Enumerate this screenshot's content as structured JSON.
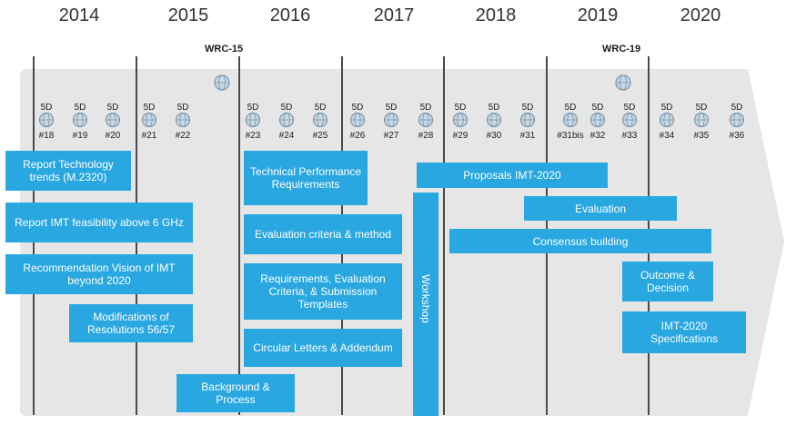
{
  "years": [
    "2014",
    "2015",
    "2016",
    "2017",
    "2018",
    "2019",
    "2020"
  ],
  "wrc": [
    "WRC-15",
    "WRC-19"
  ],
  "meetings": [
    {
      "top": "5D",
      "num": "#18"
    },
    {
      "top": "5D",
      "num": "#19"
    },
    {
      "top": "5D",
      "num": "#20"
    },
    {
      "top": "5D",
      "num": "#21"
    },
    {
      "top": "5D",
      "num": "#22"
    },
    {
      "top": "5D",
      "num": "#23"
    },
    {
      "top": "5D",
      "num": "#24"
    },
    {
      "top": "5D",
      "num": "#25"
    },
    {
      "top": "5D",
      "num": "#26"
    },
    {
      "top": "5D",
      "num": "#27"
    },
    {
      "top": "5D",
      "num": "#28"
    },
    {
      "top": "5D",
      "num": "#29"
    },
    {
      "top": "5D",
      "num": "#30"
    },
    {
      "top": "5D",
      "num": "#31"
    },
    {
      "top": "5D",
      "num": "#31bis"
    },
    {
      "top": "5D",
      "num": "#32"
    },
    {
      "top": "5D",
      "num": "#33"
    },
    {
      "top": "5D",
      "num": "#34"
    },
    {
      "top": "5D",
      "num": "#35"
    },
    {
      "top": "5D",
      "num": "#36"
    }
  ],
  "boxes": {
    "report_tech": "Report Technology trends (M.2320)",
    "report_imt": "Report  IMT feasibility  above 6 GHz",
    "rec_vision": "Recommendation Vision of IMT beyond 2020",
    "mod_res": "Modifications of Resolutions 56/57",
    "background": "Background & Process",
    "tech_perf": "Technical Performance Requirements",
    "eval_criteria": "Evaluation criteria & method",
    "req_eval": "Requirements, Evaluation Criteria, & Submission Templates",
    "circular": "Circular Letters & Addendum",
    "workshop": "Workshop",
    "proposals": "Proposals IMT-2020",
    "evaluation": "Evaluation",
    "consensus": "Consensus building",
    "outcome": "Outcome & Decision",
    "specs": "IMT-2020 Specifications"
  },
  "colors": {
    "box": "#29a7e1",
    "band": "#e6e6e6",
    "line": "#4a4a4a"
  }
}
